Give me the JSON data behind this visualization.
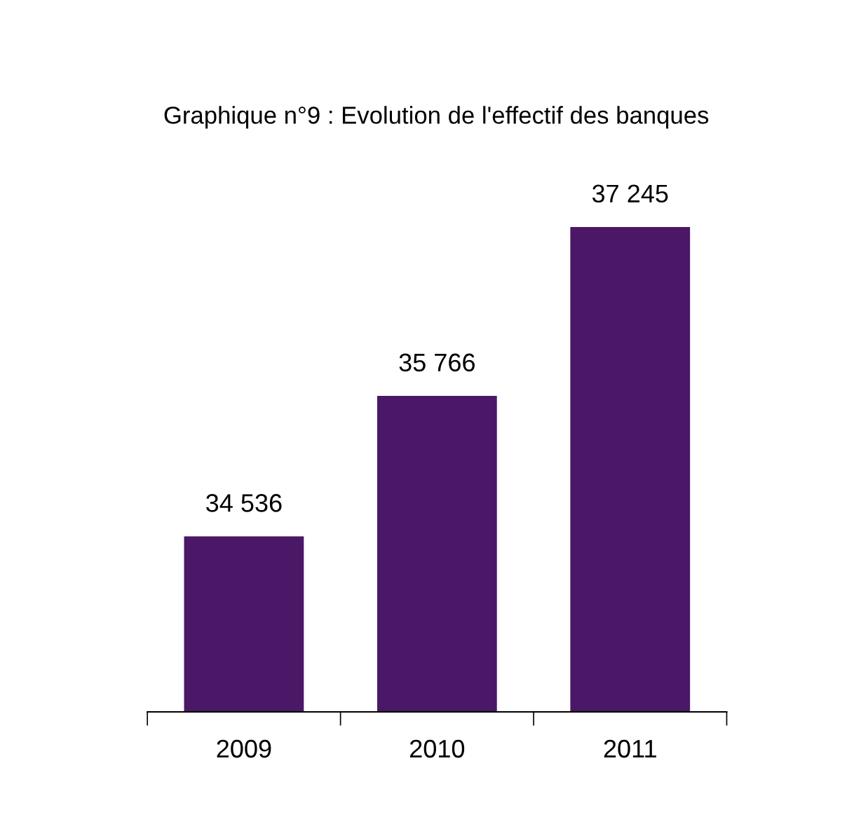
{
  "chart_data": {
    "type": "bar",
    "title": "Graphique n°9 : Evolution de l'effectif des banques",
    "categories": [
      "2009",
      "2010",
      "2011"
    ],
    "values": [
      34536,
      35766,
      37245
    ],
    "value_labels": [
      "34 536",
      "35 766",
      "37 245"
    ],
    "color": "#4b1767",
    "ylim": [
      33000,
      37245
    ],
    "grid": false,
    "legend": false
  }
}
